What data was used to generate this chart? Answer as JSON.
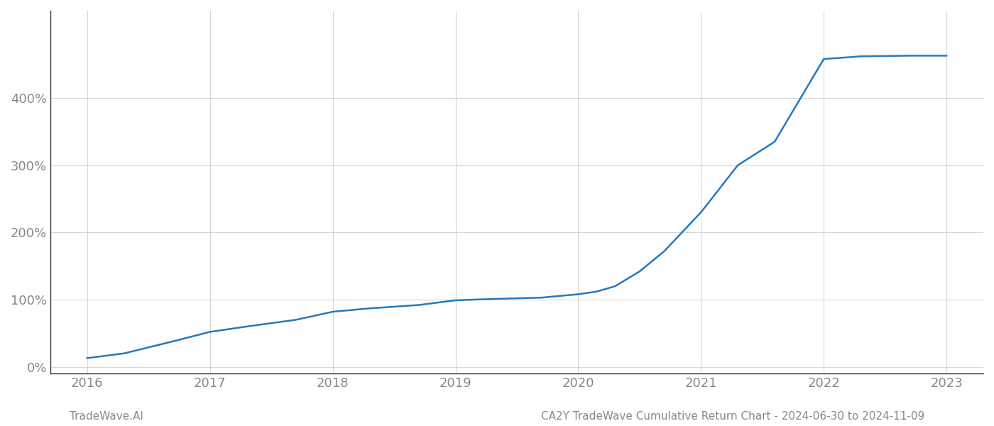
{
  "x_values": [
    2016.0,
    2016.3,
    2016.7,
    2017.0,
    2017.3,
    2017.7,
    2018.0,
    2018.3,
    2018.7,
    2019.0,
    2019.3,
    2019.7,
    2020.0,
    2020.15,
    2020.3,
    2020.5,
    2020.7,
    2021.0,
    2021.3,
    2021.6,
    2022.0,
    2022.3,
    2022.7,
    2023.0
  ],
  "y_values": [
    0.13,
    0.2,
    0.38,
    0.52,
    0.6,
    0.7,
    0.82,
    0.87,
    0.92,
    0.99,
    1.01,
    1.03,
    1.08,
    1.12,
    1.2,
    1.42,
    1.72,
    2.3,
    3.0,
    3.35,
    4.58,
    4.62,
    4.63,
    4.63
  ],
  "line_color": "#2878bd",
  "line_width": 1.8,
  "xlim": [
    2015.7,
    2023.3
  ],
  "ylim": [
    -0.1,
    5.3
  ],
  "yticks": [
    0,
    1,
    2,
    3,
    4
  ],
  "ytick_labels": [
    "0%",
    "100%",
    "200%",
    "300%",
    "400%"
  ],
  "xticks": [
    2016,
    2017,
    2018,
    2019,
    2020,
    2021,
    2022,
    2023
  ],
  "xtick_labels": [
    "2016",
    "2017",
    "2018",
    "2019",
    "2020",
    "2021",
    "2022",
    "2023"
  ],
  "grid_color": "#cccccc",
  "grid_alpha": 0.8,
  "bg_color": "#ffffff",
  "footer_left": "TradeWave.AI",
  "footer_right": "CA2Y TradeWave Cumulative Return Chart - 2024-06-30 to 2024-11-09",
  "footer_color": "#888888",
  "footer_fontsize": 11,
  "tick_fontsize": 13,
  "tick_color": "#888888"
}
